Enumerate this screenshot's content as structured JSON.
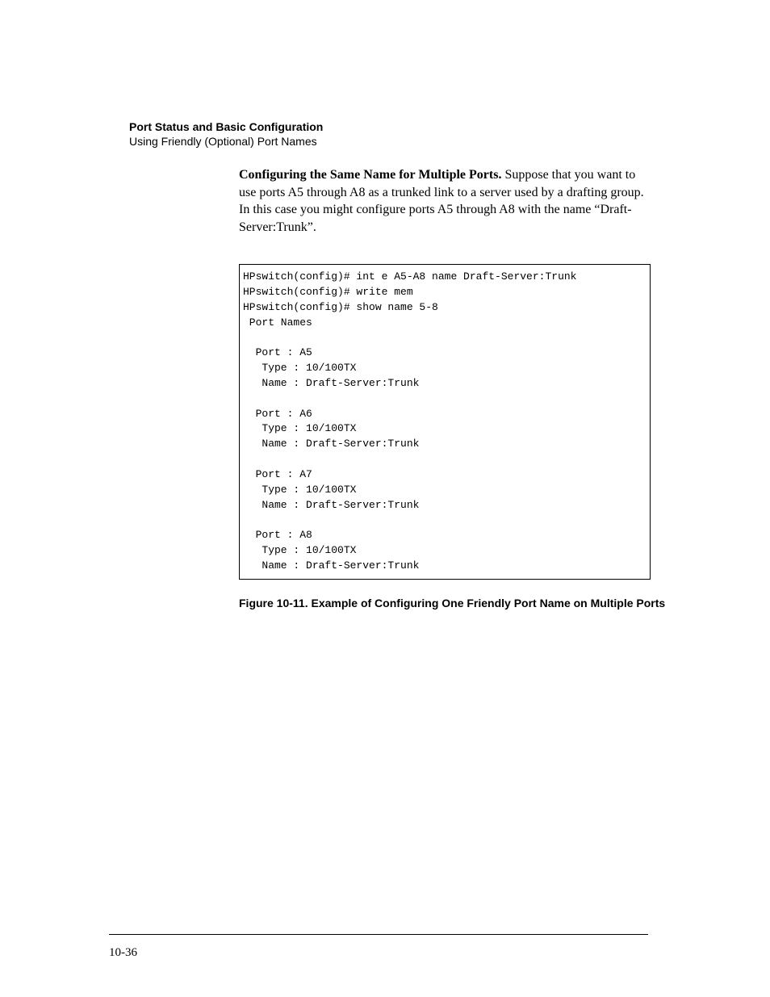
{
  "header": {
    "title": "Port Status and Basic Configuration",
    "subtitle": "Using Friendly (Optional) Port Names"
  },
  "body": {
    "lead": "Configuring the Same Name for Multiple Ports.",
    "text": "  Suppose that you want to use ports A5 through A8 as a trunked link to a server used by a drafting group. In this case you might configure ports A5 through A8 with the name “Draft-Server:Trunk”."
  },
  "code": {
    "font_family": "Courier New",
    "font_size_pt": 10,
    "border_color": "#000000",
    "background_color": "#ffffff",
    "lines": [
      "HPswitch(config)# int e A5-A8 name Draft-Server:Trunk",
      "HPswitch(config)# write mem",
      "HPswitch(config)# show name 5-8",
      " Port Names",
      "",
      "  Port : A5",
      "   Type : 10/100TX",
      "   Name : Draft-Server:Trunk",
      "",
      "  Port : A6",
      "   Type : 10/100TX",
      "   Name : Draft-Server:Trunk",
      "",
      "  Port : A7",
      "   Type : 10/100TX",
      "   Name : Draft-Server:Trunk",
      "",
      "  Port : A8",
      "   Type : 10/100TX",
      "   Name : Draft-Server:Trunk"
    ]
  },
  "figure_caption": "Figure 10-11.  Example of Configuring One Friendly Port Name on Multiple Ports",
  "page_number": "10-36",
  "colors": {
    "text": "#000000",
    "background": "#ffffff",
    "rule": "#000000"
  },
  "typography": {
    "header_title_font": "Arial",
    "header_title_weight": "bold",
    "header_title_size_pt": 10.5,
    "header_subtitle_font": "Arial",
    "header_subtitle_weight": "normal",
    "header_subtitle_size_pt": 10.5,
    "body_font": "Century Schoolbook",
    "body_size_pt": 12,
    "caption_font": "Arial",
    "caption_weight": "bold",
    "caption_size_pt": 10.5,
    "page_number_font": "Century Schoolbook",
    "page_number_size_pt": 11
  }
}
